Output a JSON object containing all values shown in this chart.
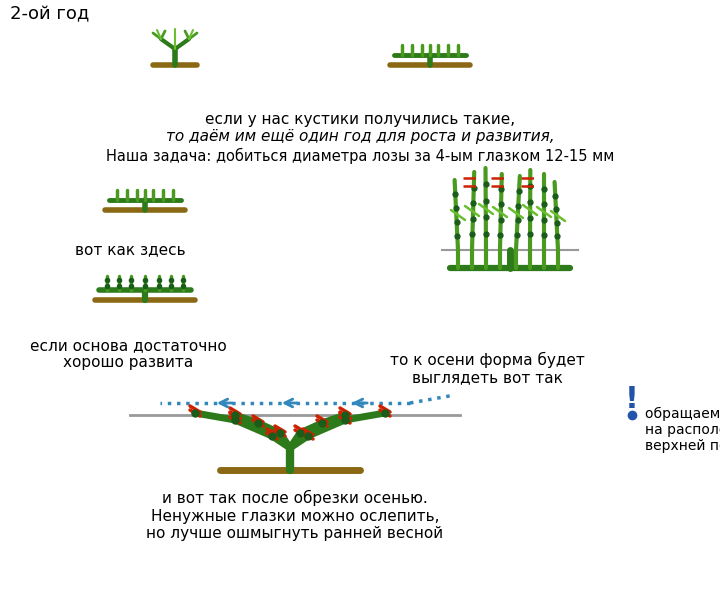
{
  "bg_color": "#ffffff",
  "green_dark": "#2d7a1a",
  "green_mid": "#4a9a20",
  "green_bright": "#6abf30",
  "brown": "#8B6914",
  "red": "#cc2200",
  "blue_arrow": "#3388bb",
  "gray_line": "#999999",
  "title_text": "2-ой год",
  "text1": "если у нас кустики получились такие,",
  "text2": "то даём им ещё один год для роста и развития,",
  "text3": "Наша задача: добиться диаметра лозы за 4-ым глазком 12-15 мм",
  "text4": "вот как здесь",
  "text5": "если основа достаточно\nхорошо развита",
  "text6": "то к осени форма будет\nвыглядеть вот так",
  "text7": "обращаем внимание\nна расположение\nверхней почки",
  "text8": "и вот так после обрезки осенью.\nНенужные глазки можно ослепить,\nно лучше ошмыгнуть ранней весной"
}
